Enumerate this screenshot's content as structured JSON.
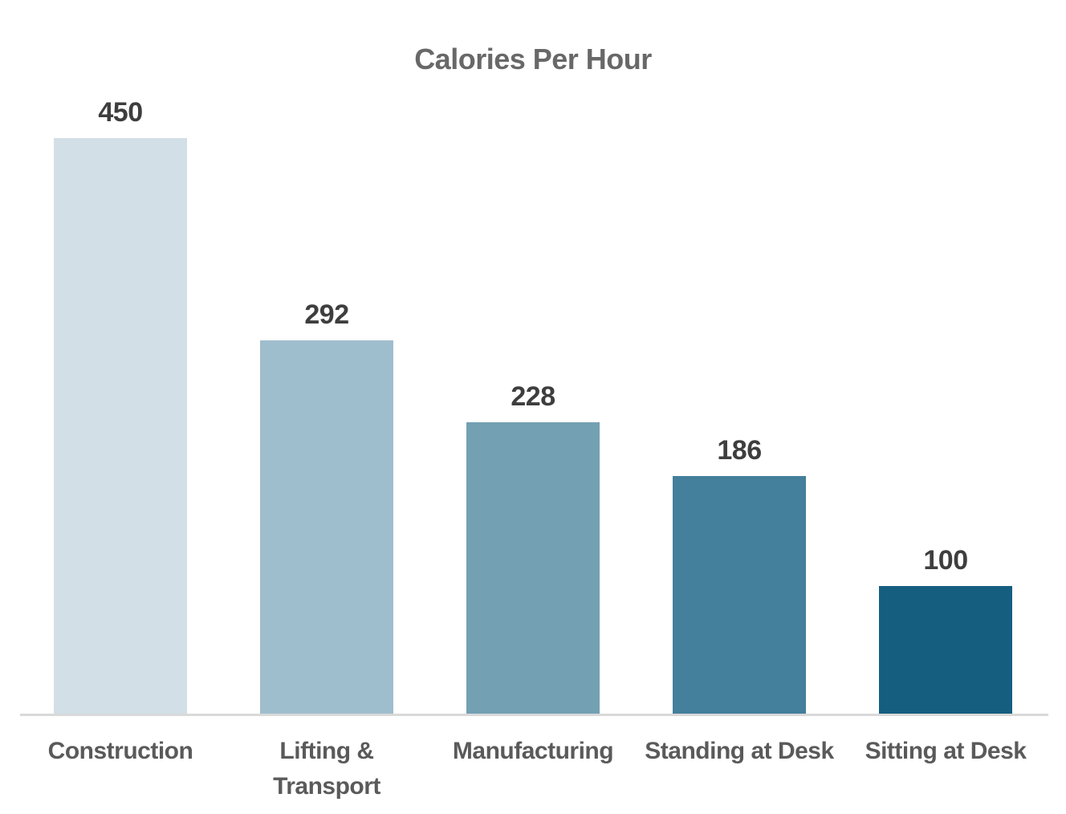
{
  "chart_data": {
    "type": "bar",
    "title": "Calories Per Hour",
    "categories": [
      "Construction",
      "Lifting & Transport",
      "Manufacturing",
      "Standing at Desk",
      "Sitting at Desk"
    ],
    "values": [
      450,
      292,
      228,
      186,
      100
    ],
    "bar_colors": [
      "#d2dfe6",
      "#9fbecd",
      "#74a0b3",
      "#447f9b",
      "#165e80"
    ],
    "xlabel": "",
    "ylabel": "",
    "ylim": [
      0,
      450
    ],
    "grid": false,
    "legend": false,
    "value_labels_shown": true,
    "colors": {
      "background": "#ffffff",
      "axis_line": "#d9d9d9",
      "title_text": "#686868",
      "value_label_text": "#3e3e3e",
      "category_label_text": "#5a5a5a"
    }
  }
}
